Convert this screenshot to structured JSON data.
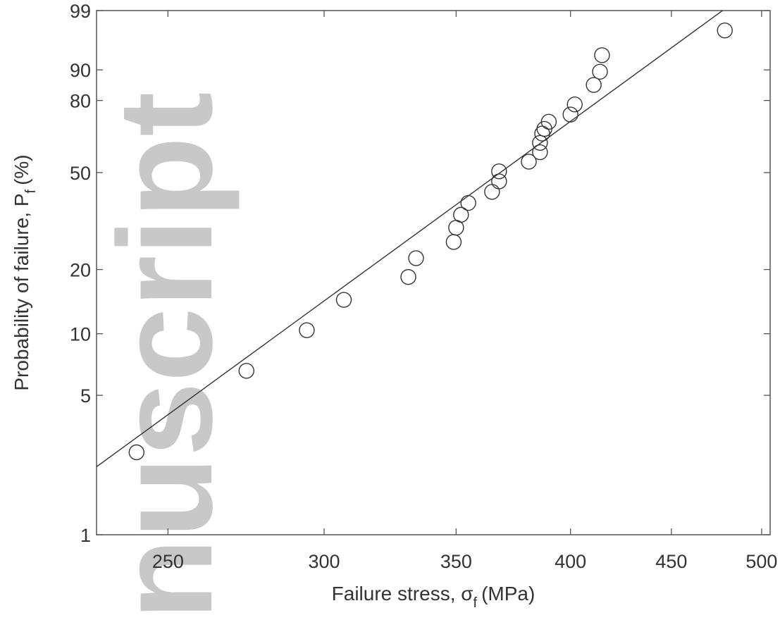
{
  "chart_data": {
    "type": "scatter",
    "title": "",
    "xlabel": "Failure stress, σ",
    "xlabel_sub": "f",
    "xlabel_unit": "(MPa)",
    "ylabel": "Probability of failure, P",
    "ylabel_sub": "f",
    "ylabel_unit": "(%)",
    "xlim": [
      230,
      505
    ],
    "yscale": "weibull-probability",
    "ylim_percent": [
      1,
      99
    ],
    "x_ticks": [
      250,
      300,
      350,
      400,
      450,
      500
    ],
    "y_ticks": [
      1,
      5,
      10,
      20,
      50,
      80,
      90,
      99
    ],
    "grid": false,
    "watermark": "nuscript",
    "points": [
      {
        "x": 241,
        "y": 2.6
      },
      {
        "x": 274,
        "y": 6.6
      },
      {
        "x": 294,
        "y": 10.4
      },
      {
        "x": 307,
        "y": 14.5
      },
      {
        "x": 331,
        "y": 18.5
      },
      {
        "x": 334,
        "y": 22.5
      },
      {
        "x": 349,
        "y": 26.5
      },
      {
        "x": 350,
        "y": 30.5
      },
      {
        "x": 352,
        "y": 34.5
      },
      {
        "x": 355,
        "y": 38.5
      },
      {
        "x": 365,
        "y": 42.5
      },
      {
        "x": 368,
        "y": 46.5
      },
      {
        "x": 368,
        "y": 50.5
      },
      {
        "x": 381,
        "y": 54.5
      },
      {
        "x": 386,
        "y": 58.5
      },
      {
        "x": 386,
        "y": 62.5
      },
      {
        "x": 387,
        "y": 66.5
      },
      {
        "x": 388,
        "y": 68.5
      },
      {
        "x": 390,
        "y": 71.5
      },
      {
        "x": 400,
        "y": 74.5
      },
      {
        "x": 402,
        "y": 78.5
      },
      {
        "x": 411,
        "y": 85.5
      },
      {
        "x": 414,
        "y": 89.5
      },
      {
        "x": 415,
        "y": 93.5
      },
      {
        "x": 479,
        "y": 97.4
      }
    ],
    "fit_line": {
      "x": [
        230,
        505
      ],
      "y": [
        2.2,
        99.9
      ]
    }
  }
}
